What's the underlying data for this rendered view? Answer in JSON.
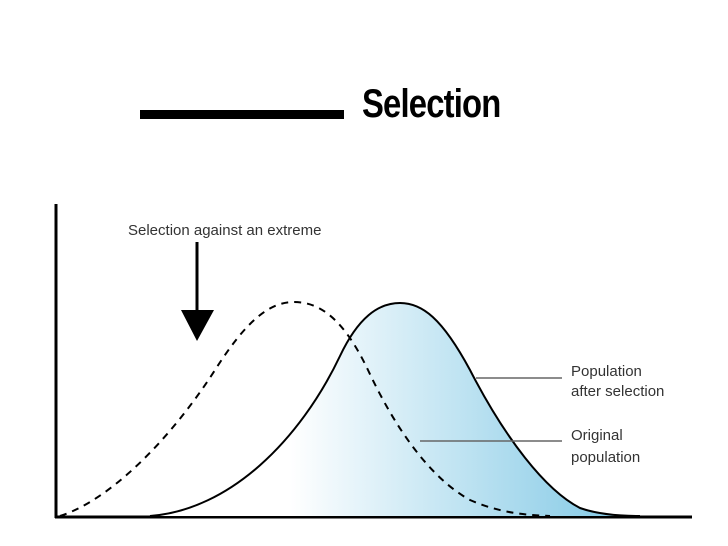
{
  "title": {
    "blank_label": "",
    "word": "Selection"
  },
  "figure": {
    "arrow_label": "Selection against an extreme",
    "legend": [
      {
        "key": "after",
        "line1": "Population",
        "line2": "after selection",
        "style": "solid, shaded"
      },
      {
        "key": "original",
        "line1": "Original",
        "line2": "population",
        "style": "dashed"
      }
    ],
    "colors": {
      "shade_light": "#ffffff",
      "shade_dark": "#7cc6e4",
      "curve": "#000000",
      "leader": "#666666"
    }
  }
}
